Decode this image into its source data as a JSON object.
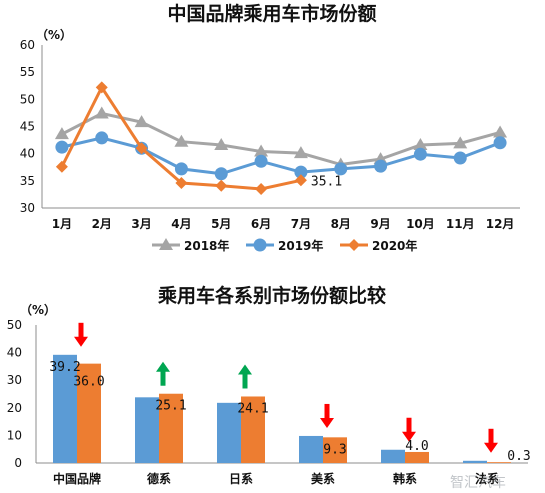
{
  "chart_data": [
    {
      "type": "line",
      "title": "中国品牌乘用车市场份额",
      "unit_label": "（%）",
      "categories": [
        "1月",
        "2月",
        "3月",
        "4月",
        "5月",
        "6月",
        "7月",
        "8月",
        "9月",
        "10月",
        "11月",
        "12月"
      ],
      "ylim": [
        30,
        60
      ],
      "yticks": [
        30,
        35,
        40,
        45,
        50,
        55,
        60
      ],
      "legend_position": "bottom",
      "series": [
        {
          "name": "2018年",
          "color": "#a5a5a5",
          "marker": "triangle",
          "values": [
            43.6,
            47.4,
            45.8,
            42.2,
            41.6,
            40.4,
            40.1,
            38.0,
            39.0,
            41.6,
            41.9,
            43.9
          ]
        },
        {
          "name": "2019年",
          "color": "#5b9bd5",
          "marker": "circle",
          "values": [
            41.2,
            42.9,
            41.0,
            37.2,
            36.3,
            38.6,
            36.6,
            37.2,
            37.7,
            39.9,
            39.2,
            42.0
          ]
        },
        {
          "name": "2020年",
          "color": "#ed7d31",
          "marker": "diamond",
          "values": [
            37.6,
            52.2,
            41.0,
            34.6,
            34.1,
            33.5,
            35.1,
            null,
            null,
            null,
            null,
            null
          ]
        }
      ],
      "annotation": "35.1"
    },
    {
      "type": "bar",
      "title": "乘用车各系别市场份额比较",
      "unit_label": "（%）",
      "categories": [
        "中国品牌",
        "德系",
        "日系",
        "美系",
        "韩系",
        "法系"
      ],
      "ylim": [
        0,
        50
      ],
      "yticks": [
        0,
        10,
        20,
        30,
        40,
        50
      ],
      "series": [
        {
          "color": "#5b9bd5",
          "values": [
            39.2,
            23.8,
            21.8,
            9.8,
            4.8,
            0.8
          ]
        },
        {
          "color": "#ed7d31",
          "values": [
            36.0,
            25.1,
            24.1,
            9.3,
            4.0,
            0.3
          ]
        }
      ],
      "labels": [
        {
          "category": 0,
          "series": 0,
          "text": "39.2"
        },
        {
          "category": 0,
          "series": 1,
          "text": "36.0"
        },
        {
          "category": 1,
          "series": 1,
          "text": "25.1"
        },
        {
          "category": 2,
          "series": 1,
          "text": "24.1"
        },
        {
          "category": 3,
          "series": 1,
          "text": "9.3"
        },
        {
          "category": 4,
          "series": 1,
          "text": "4.0"
        },
        {
          "category": 5,
          "series": 1,
          "text": "0.3"
        }
      ],
      "arrows": [
        "down",
        "up",
        "up",
        "down",
        "down",
        "down"
      ],
      "arrow_colors": {
        "down": "#ff0000",
        "up": "#00a651"
      }
    }
  ],
  "watermark": "智汇汽车"
}
